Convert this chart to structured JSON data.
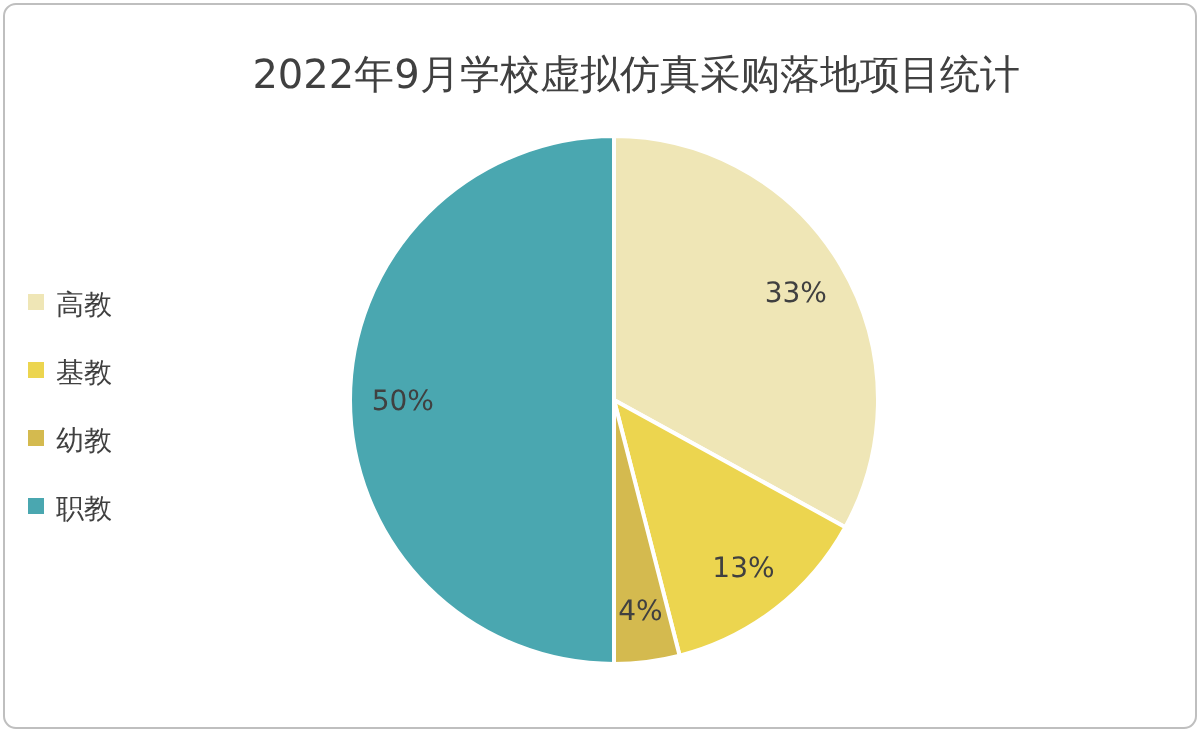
{
  "chart_data": {
    "type": "pie",
    "title": "2022年9月学校虚拟仿真采购落地项目统计",
    "categories": [
      "高教",
      "基教",
      "幼教",
      "职教"
    ],
    "values": [
      33,
      13,
      4,
      50
    ],
    "value_labels": [
      "33%",
      "13%",
      "4%",
      "50%"
    ],
    "colors": [
      "#efe6b6",
      "#ecd54f",
      "#d4ba4f",
      "#4aa7b0"
    ],
    "legend": "left"
  }
}
